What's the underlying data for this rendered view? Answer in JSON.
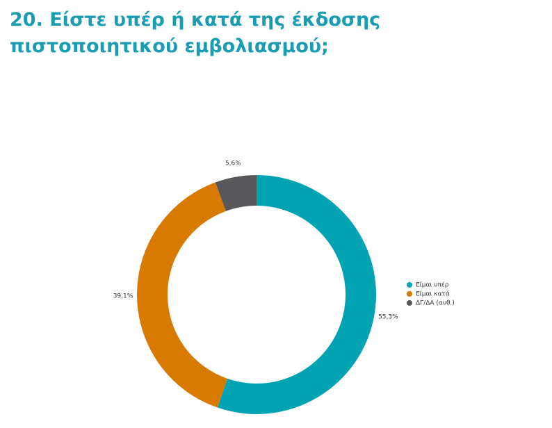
{
  "chart_data": {
    "type": "donut",
    "title": "20. Είστε υπέρ ή κατά της έκδοσης πιστοποιητικού εμβολιασμού;",
    "categories": [
      "Είμαι υπέρ",
      "Είμαι κατά",
      "ΔΓ/ΔΑ (αυθ.)"
    ],
    "values": [
      55.3,
      39.1,
      5.6
    ],
    "value_labels": [
      "55,3%",
      "39,1%",
      "5,6%"
    ],
    "colors": [
      "#00a3b1",
      "#d97a00",
      "#58585a"
    ],
    "legend": "right"
  }
}
